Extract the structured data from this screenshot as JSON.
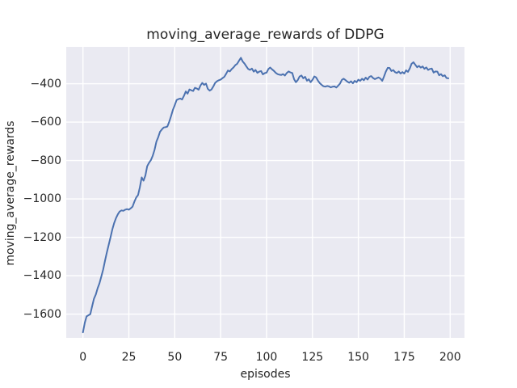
{
  "chart_data": {
    "type": "line",
    "title": "moving_average_rewards of DDPG",
    "xlabel": "episodes",
    "ylabel": "moving_average_rewards",
    "xlim": [
      -9.1,
      207.8
    ],
    "ylim": [
      -1724,
      -208
    ],
    "xticks": [
      0,
      25,
      50,
      75,
      100,
      125,
      150,
      175,
      200
    ],
    "yticks": [
      -400,
      -600,
      -800,
      -1000,
      -1200,
      -1400,
      -1600
    ],
    "grid": true,
    "grid_color": "#ffffff",
    "plot_bg_color": "#eaeaf2",
    "text_color": "#262626",
    "legend_position": "none",
    "series": [
      {
        "name": "moving_average_rewards",
        "color": "#4c72b0",
        "points": [
          [
            0,
            -1695
          ],
          [
            1,
            -1645
          ],
          [
            2,
            -1612
          ],
          [
            3,
            -1606
          ],
          [
            4,
            -1600
          ],
          [
            5,
            -1560
          ],
          [
            6,
            -1520
          ],
          [
            7,
            -1498
          ],
          [
            8,
            -1465
          ],
          [
            9,
            -1440
          ],
          [
            10,
            -1405
          ],
          [
            11,
            -1368
          ],
          [
            12,
            -1322
          ],
          [
            13,
            -1280
          ],
          [
            14,
            -1240
          ],
          [
            15,
            -1200
          ],
          [
            16,
            -1158
          ],
          [
            17,
            -1126
          ],
          [
            18,
            -1100
          ],
          [
            19,
            -1080
          ],
          [
            20,
            -1066
          ],
          [
            21,
            -1060
          ],
          [
            22,
            -1062
          ],
          [
            23,
            -1056
          ],
          [
            24,
            -1053
          ],
          [
            25,
            -1056
          ],
          [
            26,
            -1049
          ],
          [
            27,
            -1040
          ],
          [
            28,
            -1015
          ],
          [
            29,
            -993
          ],
          [
            30,
            -980
          ],
          [
            31,
            -940
          ],
          [
            32,
            -888
          ],
          [
            33,
            -905
          ],
          [
            34,
            -878
          ],
          [
            35,
            -830
          ],
          [
            36,
            -812
          ],
          [
            37,
            -798
          ],
          [
            38,
            -775
          ],
          [
            39,
            -745
          ],
          [
            40,
            -702
          ],
          [
            41,
            -678
          ],
          [
            42,
            -650
          ],
          [
            43,
            -638
          ],
          [
            44,
            -628
          ],
          [
            45,
            -626
          ],
          [
            46,
            -623
          ],
          [
            47,
            -598
          ],
          [
            48,
            -568
          ],
          [
            49,
            -535
          ],
          [
            50,
            -512
          ],
          [
            51,
            -485
          ],
          [
            52,
            -480
          ],
          [
            53,
            -477
          ],
          [
            54,
            -482
          ],
          [
            55,
            -463
          ],
          [
            56,
            -440
          ],
          [
            57,
            -452
          ],
          [
            58,
            -430
          ],
          [
            59,
            -434
          ],
          [
            60,
            -438
          ],
          [
            61,
            -421
          ],
          [
            62,
            -425
          ],
          [
            63,
            -431
          ],
          [
            64,
            -409
          ],
          [
            65,
            -396
          ],
          [
            66,
            -406
          ],
          [
            67,
            -399
          ],
          [
            68,
            -426
          ],
          [
            69,
            -436
          ],
          [
            70,
            -430
          ],
          [
            71,
            -414
          ],
          [
            72,
            -396
          ],
          [
            73,
            -387
          ],
          [
            74,
            -382
          ],
          [
            75,
            -378
          ],
          [
            76,
            -371
          ],
          [
            77,
            -364
          ],
          [
            78,
            -348
          ],
          [
            79,
            -331
          ],
          [
            80,
            -336
          ],
          [
            81,
            -324
          ],
          [
            82,
            -315
          ],
          [
            83,
            -303
          ],
          [
            84,
            -296
          ],
          [
            85,
            -280
          ],
          [
            86,
            -265
          ],
          [
            87,
            -284
          ],
          [
            88,
            -295
          ],
          [
            89,
            -310
          ],
          [
            90,
            -323
          ],
          [
            91,
            -328
          ],
          [
            92,
            -321
          ],
          [
            93,
            -337
          ],
          [
            94,
            -328
          ],
          [
            95,
            -343
          ],
          [
            96,
            -337
          ],
          [
            97,
            -334
          ],
          [
            98,
            -351
          ],
          [
            99,
            -345
          ],
          [
            100,
            -342
          ],
          [
            101,
            -323
          ],
          [
            102,
            -316
          ],
          [
            103,
            -325
          ],
          [
            104,
            -333
          ],
          [
            105,
            -343
          ],
          [
            106,
            -350
          ],
          [
            107,
            -353
          ],
          [
            108,
            -354
          ],
          [
            109,
            -350
          ],
          [
            110,
            -357
          ],
          [
            111,
            -344
          ],
          [
            112,
            -336
          ],
          [
            113,
            -341
          ],
          [
            114,
            -344
          ],
          [
            115,
            -377
          ],
          [
            116,
            -392
          ],
          [
            117,
            -381
          ],
          [
            118,
            -362
          ],
          [
            119,
            -357
          ],
          [
            120,
            -372
          ],
          [
            121,
            -364
          ],
          [
            122,
            -384
          ],
          [
            123,
            -377
          ],
          [
            124,
            -392
          ],
          [
            125,
            -380
          ],
          [
            126,
            -362
          ],
          [
            127,
            -367
          ],
          [
            128,
            -384
          ],
          [
            129,
            -397
          ],
          [
            130,
            -406
          ],
          [
            131,
            -413
          ],
          [
            132,
            -415
          ],
          [
            133,
            -412
          ],
          [
            134,
            -414
          ],
          [
            135,
            -419
          ],
          [
            136,
            -415
          ],
          [
            137,
            -414
          ],
          [
            138,
            -420
          ],
          [
            139,
            -410
          ],
          [
            140,
            -399
          ],
          [
            141,
            -380
          ],
          [
            142,
            -374
          ],
          [
            143,
            -381
          ],
          [
            144,
            -389
          ],
          [
            145,
            -395
          ],
          [
            146,
            -387
          ],
          [
            147,
            -398
          ],
          [
            148,
            -385
          ],
          [
            149,
            -392
          ],
          [
            150,
            -379
          ],
          [
            151,
            -385
          ],
          [
            152,
            -374
          ],
          [
            153,
            -382
          ],
          [
            154,
            -368
          ],
          [
            155,
            -378
          ],
          [
            156,
            -364
          ],
          [
            157,
            -360
          ],
          [
            158,
            -370
          ],
          [
            159,
            -376
          ],
          [
            160,
            -371
          ],
          [
            161,
            -367
          ],
          [
            162,
            -373
          ],
          [
            163,
            -385
          ],
          [
            164,
            -362
          ],
          [
            165,
            -336
          ],
          [
            166,
            -317
          ],
          [
            167,
            -318
          ],
          [
            168,
            -334
          ],
          [
            169,
            -329
          ],
          [
            170,
            -340
          ],
          [
            171,
            -344
          ],
          [
            172,
            -336
          ],
          [
            173,
            -347
          ],
          [
            174,
            -339
          ],
          [
            175,
            -347
          ],
          [
            176,
            -330
          ],
          [
            177,
            -338
          ],
          [
            178,
            -320
          ],
          [
            179,
            -296
          ],
          [
            180,
            -288
          ],
          [
            181,
            -301
          ],
          [
            182,
            -314
          ],
          [
            183,
            -307
          ],
          [
            184,
            -316
          ],
          [
            185,
            -310
          ],
          [
            186,
            -322
          ],
          [
            187,
            -315
          ],
          [
            188,
            -328
          ],
          [
            189,
            -323
          ],
          [
            190,
            -321
          ],
          [
            191,
            -342
          ],
          [
            192,
            -336
          ],
          [
            193,
            -337
          ],
          [
            194,
            -356
          ],
          [
            195,
            -350
          ],
          [
            196,
            -361
          ],
          [
            197,
            -356
          ],
          [
            198,
            -370
          ],
          [
            199,
            -372
          ]
        ]
      }
    ]
  }
}
